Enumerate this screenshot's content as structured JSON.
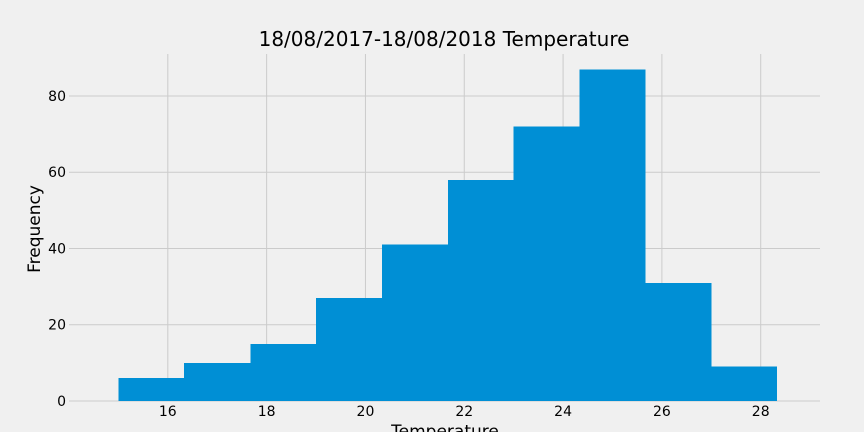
{
  "chart_data": {
    "type": "bar",
    "title": "18/08/2017-18/08/2018 Temperature",
    "xlabel": "Temperature",
    "ylabel": "Frequency",
    "bin_edges": [
      15.0,
      16.33,
      17.67,
      19.0,
      20.33,
      21.67,
      23.0,
      24.33,
      25.67,
      27.0,
      28.33
    ],
    "values": [
      6,
      10,
      15,
      27,
      41,
      58,
      72,
      87,
      31,
      9
    ],
    "xlim": [
      14.0,
      29.2
    ],
    "ylim": [
      0,
      91
    ],
    "x_ticks": [
      16,
      18,
      20,
      22,
      24,
      26,
      28
    ],
    "y_ticks": [
      0,
      20,
      40,
      60,
      80
    ],
    "grid": true,
    "colors": {
      "bar": "#008fd5",
      "background": "#f0f0f0",
      "grid": "#cbcbcb"
    }
  }
}
